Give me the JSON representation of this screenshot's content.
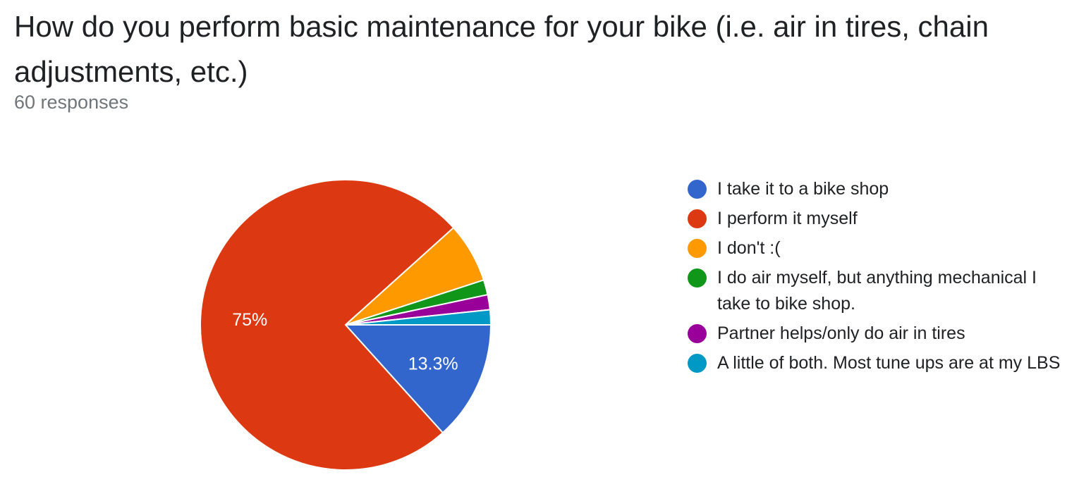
{
  "header": {
    "question": "How do you perform basic maintenance for your bike (i.e. air in tires, chain adjustments, etc.)",
    "responses": "60 responses"
  },
  "chart_data": {
    "type": "pie",
    "total_responses": 60,
    "slices": [
      {
        "label": "I take it to a bike shop",
        "count": 8,
        "percent": 13.3,
        "color": "#3366cc",
        "data_label": "13.3%"
      },
      {
        "label": "I perform it myself",
        "count": 45,
        "percent": 75,
        "color": "#dc3912",
        "data_label": "75%"
      },
      {
        "label": "I don't :(",
        "count": 4,
        "percent": 6.7,
        "color": "#ff9900",
        "data_label": ""
      },
      {
        "label": "I do air myself, but anything mechanical I take to bike shop.",
        "count": 1,
        "percent": 1.7,
        "color": "#109618",
        "data_label": ""
      },
      {
        "label": "Partner helps/only do air in tires",
        "count": 1,
        "percent": 1.7,
        "color": "#990099",
        "data_label": ""
      },
      {
        "label": "A little of both. Most tune ups are at my LBS",
        "count": 1,
        "percent": 1.7,
        "color": "#0099c6",
        "data_label": ""
      }
    ],
    "legend_position": "right",
    "data_label_color": "#ffffff"
  }
}
